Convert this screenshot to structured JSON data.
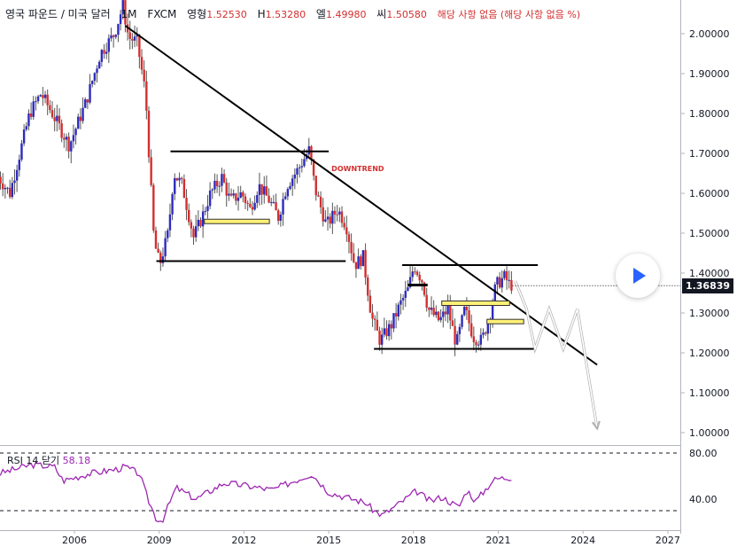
{
  "header": {
    "symbol": "영국 파운드 / 미국 달러",
    "interval": "1M",
    "exchange": "FXCM",
    "open_label": "영형",
    "open": "1.52530",
    "high_label": "H",
    "high": "1.53280",
    "low_label": "엘",
    "low": "1.49980",
    "close_label": "씨",
    "close": "1.50580",
    "change": "해당 사항 없음 (해당 사항 없음 %)"
  },
  "rsi": {
    "label": "RSI 14 닫기",
    "value": "58.18"
  },
  "last_price": "1.36839",
  "annotation": "DOWNTREND",
  "colors": {
    "up": "#2d2bbd",
    "down": "#d32f2f",
    "rsi": "#9c27b0",
    "trend": "#000000",
    "zone": "#fff176",
    "projection": "#ffffff"
  },
  "chart_data": {
    "type": "candlestick",
    "x_ticks": [
      "2006",
      "2009",
      "2012",
      "2015",
      "2018",
      "2021",
      "2024",
      "2027"
    ],
    "price_ticks": [
      "2.00000",
      "1.90000",
      "1.80000",
      "1.70000",
      "1.60000",
      "1.50000",
      "1.40000",
      "1.30000",
      "1.20000",
      "1.10000",
      "1.00000"
    ],
    "ylim": [
      0.97,
      2.08
    ],
    "rsi_ticks": [
      "80.00",
      "40.00"
    ],
    "rsi_levels": [
      80,
      30
    ],
    "price_path": [
      [
        2003.3,
        1.65
      ],
      [
        2003.8,
        1.6
      ],
      [
        2004.5,
        1.8
      ],
      [
        2004.9,
        1.85
      ],
      [
        2005.3,
        1.8
      ],
      [
        2005.6,
        1.76
      ],
      [
        2005.9,
        1.72
      ],
      [
        2006.5,
        1.83
      ],
      [
        2007.0,
        1.95
      ],
      [
        2007.5,
        2.0
      ],
      [
        2007.8,
        2.07
      ],
      [
        2008.0,
        1.99
      ],
      [
        2008.3,
        1.98
      ],
      [
        2008.6,
        1.85
      ],
      [
        2008.9,
        1.48
      ],
      [
        2009.1,
        1.42
      ],
      [
        2009.4,
        1.5
      ],
      [
        2009.6,
        1.65
      ],
      [
        2009.9,
        1.62
      ],
      [
        2010.3,
        1.49
      ],
      [
        2010.6,
        1.54
      ],
      [
        2010.9,
        1.6
      ],
      [
        2011.3,
        1.64
      ],
      [
        2011.6,
        1.58
      ],
      [
        2012.0,
        1.6
      ],
      [
        2012.3,
        1.56
      ],
      [
        2012.6,
        1.62
      ],
      [
        2013.0,
        1.58
      ],
      [
        2013.3,
        1.54
      ],
      [
        2013.6,
        1.62
      ],
      [
        2014.0,
        1.66
      ],
      [
        2014.4,
        1.71
      ],
      [
        2014.6,
        1.61
      ],
      [
        2015.0,
        1.52
      ],
      [
        2015.4,
        1.56
      ],
      [
        2015.7,
        1.52
      ],
      [
        2016.0,
        1.42
      ],
      [
        2016.3,
        1.44
      ],
      [
        2016.6,
        1.29
      ],
      [
        2016.9,
        1.23
      ],
      [
        2017.3,
        1.27
      ],
      [
        2017.6,
        1.32
      ],
      [
        2017.9,
        1.36
      ],
      [
        2018.1,
        1.42
      ],
      [
        2018.4,
        1.38
      ],
      [
        2018.6,
        1.31
      ],
      [
        2019.0,
        1.28
      ],
      [
        2019.3,
        1.31
      ],
      [
        2019.6,
        1.22
      ],
      [
        2019.9,
        1.31
      ],
      [
        2020.2,
        1.24
      ],
      [
        2020.5,
        1.23
      ],
      [
        2020.8,
        1.3
      ],
      [
        2021.0,
        1.37
      ],
      [
        2021.3,
        1.39
      ],
      [
        2021.5,
        1.37
      ]
    ],
    "rsi_path": [
      [
        2003.3,
        62
      ],
      [
        2004.5,
        70
      ],
      [
        2005.3,
        68
      ],
      [
        2005.6,
        56
      ],
      [
        2006.5,
        62
      ],
      [
        2007.5,
        66
      ],
      [
        2007.8,
        68
      ],
      [
        2008.3,
        62
      ],
      [
        2008.6,
        40
      ],
      [
        2008.9,
        23
      ],
      [
        2009.1,
        21
      ],
      [
        2009.6,
        50
      ],
      [
        2010.3,
        40
      ],
      [
        2011.3,
        54
      ],
      [
        2012.0,
        52
      ],
      [
        2013.0,
        48
      ],
      [
        2014.4,
        62
      ],
      [
        2015.0,
        46
      ],
      [
        2015.7,
        41
      ],
      [
        2016.3,
        37
      ],
      [
        2016.6,
        30
      ],
      [
        2016.9,
        26
      ],
      [
        2017.6,
        38
      ],
      [
        2018.1,
        47
      ],
      [
        2018.6,
        38
      ],
      [
        2019.0,
        42
      ],
      [
        2019.6,
        33
      ],
      [
        2019.9,
        48
      ],
      [
        2020.2,
        38
      ],
      [
        2020.8,
        56
      ],
      [
        2021.0,
        58
      ],
      [
        2021.5,
        59
      ]
    ],
    "drawings": {
      "trendline": [
        [
          2007.8,
          2.02
        ],
        [
          2024.5,
          1.17
        ]
      ],
      "resistance": [
        [
          2009.4,
          1.705
        ],
        [
          2015.0,
          1.705
        ]
      ],
      "support_2009": [
        [
          2008.9,
          1.43
        ],
        [
          2015.6,
          1.43
        ]
      ],
      "resistance_2018": [
        [
          2017.6,
          1.42
        ],
        [
          2022.4,
          1.42
        ]
      ],
      "support_2017": [
        [
          2016.6,
          1.21
        ],
        [
          2022.3,
          1.21
        ]
      ],
      "range_mark": [
        [
          2017.8,
          1.37
        ],
        [
          2018.5,
          1.37
        ]
      ],
      "zone_2010": [
        [
          2010.6,
          1.535
        ],
        [
          2012.9,
          1.525
        ]
      ],
      "zone_2019": [
        [
          2019.0,
          1.33
        ],
        [
          2021.4,
          1.322
        ]
      ],
      "zone_2020": [
        [
          2020.6,
          1.284
        ],
        [
          2021.9,
          1.276
        ]
      ],
      "projection": [
        [
          2021.6,
          1.38
        ],
        [
          2022.0,
          1.31
        ],
        [
          2022.3,
          1.21
        ],
        [
          2022.8,
          1.31
        ],
        [
          2023.3,
          1.21
        ],
        [
          2023.8,
          1.31
        ],
        [
          2024.5,
          1.01
        ]
      ]
    }
  }
}
